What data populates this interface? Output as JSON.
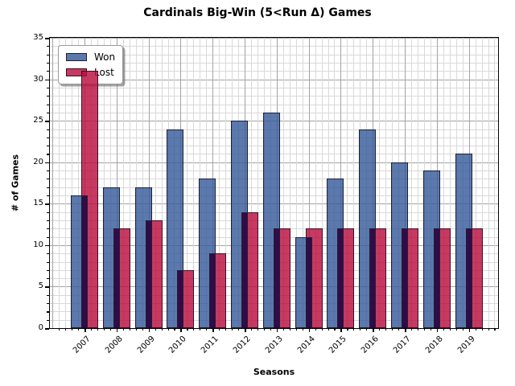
{
  "title": "Cardinals Big-Win (5<Run Δ) Games",
  "chart_data": {
    "type": "bar",
    "title": "Cardinals Big-Win (5<Run Δ) Games",
    "xlabel": "Seasons",
    "ylabel": "# of Games",
    "categories": [
      "2007",
      "2008",
      "2009",
      "2010",
      "2011",
      "2012",
      "2013",
      "2014",
      "2015",
      "2016",
      "2017",
      "2018",
      "2019"
    ],
    "series": [
      {
        "name": "Won",
        "color": "#5b79ac",
        "fill": "rgba(55,92,154,0.82)",
        "edge_color": "#1f1f33",
        "values": [
          16,
          17,
          17,
          24,
          18,
          25,
          26,
          11,
          18,
          24,
          20,
          19,
          21
        ]
      },
      {
        "name": "Lost",
        "color": "#c63a62",
        "fill": "rgba(186,15,64,0.82)",
        "edge_color": "#3a1026",
        "values": [
          31,
          12,
          13,
          7,
          9,
          14,
          12,
          12,
          12,
          12,
          12,
          12,
          12
        ]
      }
    ],
    "overlap_color": "#423366",
    "overlap_fill": "rgba(25,6,68,0.82)",
    "ylim": [
      0,
      35
    ],
    "yticks": [
      0,
      5,
      10,
      15,
      20,
      25,
      30,
      35
    ],
    "minor_y_step": 1,
    "minor_x_step": 0.2,
    "grid": {
      "minor_color": "#d9d9d9",
      "major_color": "#a3a3a3"
    },
    "legend": {
      "position": "upper left"
    }
  },
  "colors": {
    "background": "#ffffff",
    "spine": "#000000",
    "tick": "#000000",
    "text": "#000000"
  }
}
